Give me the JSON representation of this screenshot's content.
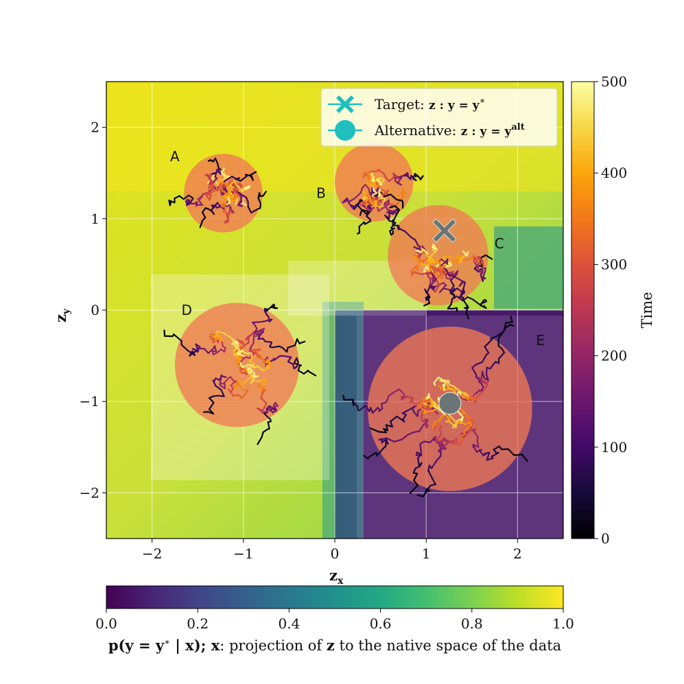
{
  "chart_data": {
    "type": "scatter",
    "xlabel": "z",
    "xlabel_sub": "x",
    "ylabel": "z",
    "ylabel_sub": "y",
    "xlim": [
      -2.5,
      2.5
    ],
    "ylim": [
      -2.5,
      2.5
    ],
    "xticks": [
      -2,
      -1,
      0,
      1,
      2
    ],
    "yticks": [
      -2,
      -1,
      0,
      1,
      2
    ],
    "xtick_labels": [
      "−2",
      "−1",
      "0",
      "1",
      "2"
    ],
    "ytick_labels": [
      "−2",
      "−1",
      "0",
      "1",
      "2"
    ],
    "grid": true,
    "regions": [
      {
        "label": "A",
        "center": [
          -1.22,
          1.28
        ],
        "radius": 0.43,
        "label_pos": [
          -1.75,
          1.68
        ]
      },
      {
        "label": "B",
        "center": [
          0.43,
          1.4
        ],
        "radius": 0.43,
        "label_pos": [
          -0.15,
          1.28
        ]
      },
      {
        "label": "C",
        "center": [
          1.13,
          0.6
        ],
        "radius": 0.55,
        "label_pos": [
          1.8,
          0.73
        ]
      },
      {
        "label": "D",
        "center": [
          -1.07,
          -0.6
        ],
        "radius": 0.68,
        "label_pos": [
          -1.62,
          0.0
        ]
      },
      {
        "label": "E",
        "center": [
          1.26,
          -1.08
        ],
        "radius": 0.9,
        "label_pos": [
          2.25,
          -0.33
        ]
      }
    ],
    "markers": {
      "target": {
        "x": 1.2,
        "y": 0.87,
        "label": "Target: ",
        "math": "z : y = y",
        "sup": "∗"
      },
      "alternative": {
        "x": 1.26,
        "y": -1.02,
        "label": "Alternative: ",
        "math": "z : y = y",
        "sup": "alt"
      }
    },
    "legend_placement": "top-right",
    "trajectory_colorbar": {
      "label": "Time",
      "range": [
        0,
        500
      ],
      "ticks": [
        0,
        100,
        200,
        300,
        400,
        500
      ],
      "colormap": "inferno"
    },
    "background_colorbar": {
      "label_math": "p(y = y",
      "label_sup": "∗",
      "label_math2": " | x);  ",
      "label_bold": "x",
      "label_rest": ": projection of ",
      "label_bold2": "z",
      "label_rest2": " to the native space of the data",
      "range": [
        0.0,
        1.0
      ],
      "ticks": [
        "0.0",
        "0.2",
        "0.4",
        "0.6",
        "0.8",
        "1.0"
      ],
      "colormap": "viridis"
    },
    "background_field": {
      "description_free": true,
      "low_region": "x > 0 and y < 0",
      "high_region": "elsewhere"
    }
  },
  "colors": {
    "circle_fill": "#f07a55",
    "marker_gray": "#6b7575",
    "legend_cyan": "#1fbfc0"
  }
}
